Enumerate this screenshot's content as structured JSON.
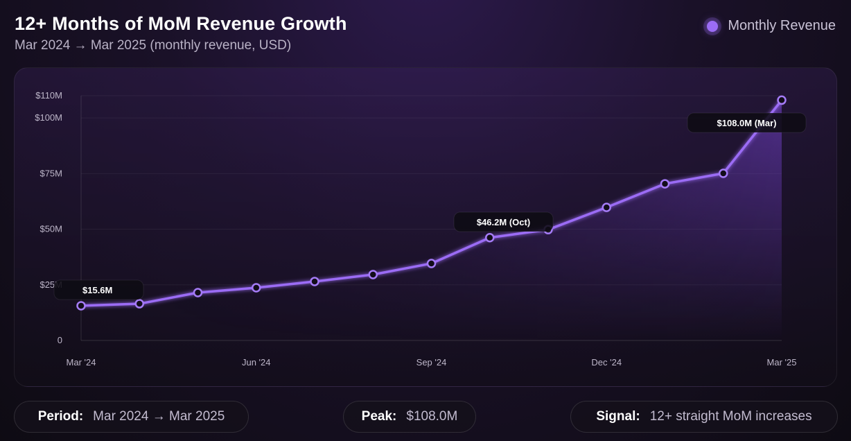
{
  "header": {
    "title": "12+ Months of MoM Revenue Growth",
    "subtitle": "Mar 2024 → Mar 2025 (monthly revenue, USD)"
  },
  "legend": {
    "label": "Monthly Revenue",
    "color": "#9b6cf5"
  },
  "chart_data": {
    "type": "line",
    "x": [
      "Mar '24",
      "Apr '24",
      "May '24",
      "Jun '24",
      "Jul '24",
      "Aug '24",
      "Sep '24",
      "Oct '24",
      "Nov '24",
      "Dec '24",
      "Jan '25",
      "Feb '25",
      "Mar '25"
    ],
    "series": [
      {
        "name": "Monthly Revenue",
        "values": [
          15.6,
          16.5,
          21.5,
          23.7,
          26.5,
          29.6,
          34.6,
          46.2,
          49.8,
          59.8,
          70.4,
          75.1,
          108.0
        ]
      }
    ],
    "x_tick_labels": [
      "Mar '24",
      "Jun '24",
      "Sep '24",
      "Dec '24",
      "Mar '25"
    ],
    "x_tick_indices": [
      0,
      3,
      6,
      9,
      12
    ],
    "y_ticks": [
      0,
      25,
      50,
      75,
      100,
      110
    ],
    "y_tick_labels": [
      "0",
      "$25M",
      "$50M",
      "$75M",
      "$100M",
      "$110M"
    ],
    "ylim": [
      0,
      110
    ],
    "grid": true,
    "area_fill": true,
    "legend_position": "top-right",
    "annotations": [
      {
        "index": 0,
        "text": "$15.6M"
      },
      {
        "index": 7,
        "text": "$46.2M (Oct)"
      },
      {
        "index": 12,
        "text": "$108.0M (Mar)"
      }
    ]
  },
  "footer": {
    "period": {
      "label": "Period:",
      "value": "Mar 2024 → Mar 2025"
    },
    "peak": {
      "label": "Peak:",
      "value": "$108.0M"
    },
    "signal": {
      "label": "Signal:",
      "value": "12+ straight MoM increases"
    }
  }
}
